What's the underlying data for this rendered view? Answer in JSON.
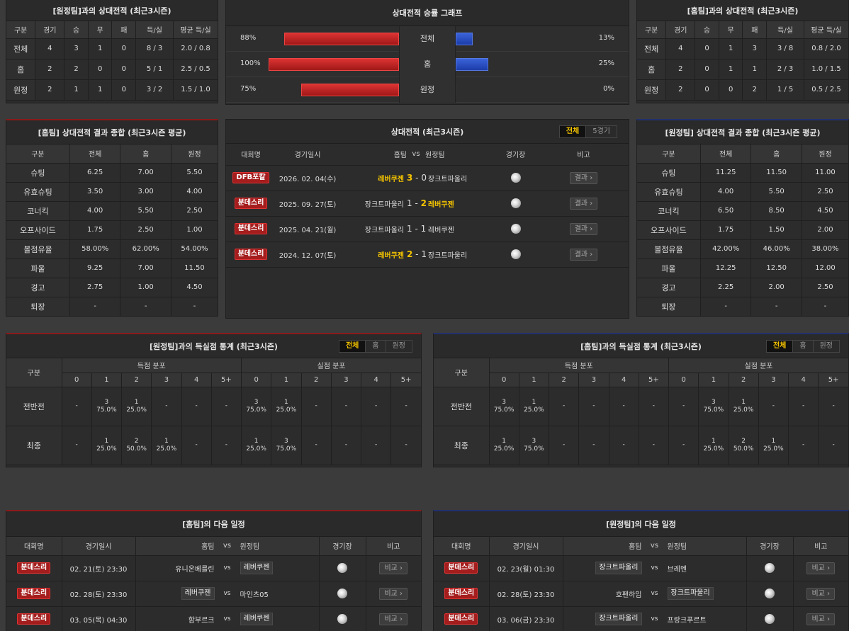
{
  "h2h_away": {
    "title": "[원정팀]과의 상대전적 (최근3시즌)",
    "headers": [
      "구분",
      "경기",
      "승",
      "무",
      "패",
      "득/실",
      "평균 득/실"
    ],
    "rows": [
      [
        "전체",
        "4",
        "3",
        "1",
        "0",
        "8 / 3",
        "2.0 / 0.8"
      ],
      [
        "홈",
        "2",
        "2",
        "0",
        "0",
        "5 / 1",
        "2.5 / 0.5"
      ],
      [
        "원정",
        "2",
        "1",
        "1",
        "0",
        "3 / 2",
        "1.5 / 1.0"
      ]
    ]
  },
  "graph": {
    "title": "상대전적 승률 그래프",
    "rows": [
      {
        "label": "전체",
        "home_pct": "88%",
        "away_pct": "13%",
        "home": 88,
        "away": 13
      },
      {
        "label": "홈",
        "home_pct": "100%",
        "away_pct": "25%",
        "home": 100,
        "away": 25
      },
      {
        "label": "원정",
        "home_pct": "75%",
        "away_pct": "0%",
        "home": 75,
        "away": 0
      }
    ]
  },
  "h2h_home": {
    "title": "[홈팀]과의 상대전적 (최근3시즌)",
    "headers": [
      "구분",
      "경기",
      "승",
      "무",
      "패",
      "득/실",
      "평균 득/실"
    ],
    "rows": [
      [
        "전체",
        "4",
        "0",
        "1",
        "3",
        "3 / 8",
        "0.8 / 2.0"
      ],
      [
        "홈",
        "2",
        "0",
        "1",
        "1",
        "2 / 3",
        "1.0 / 1.5"
      ],
      [
        "원정",
        "2",
        "0",
        "0",
        "2",
        "1 / 5",
        "0.5 / 2.5"
      ]
    ]
  },
  "stats_home": {
    "title": "[홈팀] 상대전적 결과 종합 (최근3시즌 평균)",
    "headers": [
      "구분",
      "전체",
      "홈",
      "원정"
    ],
    "rows": [
      [
        "슈팅",
        "6.25",
        "7.00",
        "5.50"
      ],
      [
        "유효슈팅",
        "3.50",
        "3.00",
        "4.00"
      ],
      [
        "코너킥",
        "4.00",
        "5.50",
        "2.50"
      ],
      [
        "오프사이드",
        "1.75",
        "2.50",
        "1.00"
      ],
      [
        "볼점유율",
        "58.00%",
        "62.00%",
        "54.00%"
      ],
      [
        "파울",
        "9.25",
        "7.00",
        "11.50"
      ],
      [
        "경고",
        "2.75",
        "1.00",
        "4.50"
      ],
      [
        "퇴장",
        "-",
        "-",
        "-"
      ]
    ]
  },
  "matches": {
    "title": "상대전적 (최근3시즌)",
    "tabs": [
      "전체",
      "5경기"
    ],
    "headers": [
      "대회명",
      "경기일시",
      "홈팀",
      "vs",
      "원정팀",
      "경기장",
      "비고"
    ],
    "result_label": "결과",
    "rows": [
      {
        "comp": "DFB포칼",
        "date": "2026. 02. 04(수)",
        "home": "레버쿠젠",
        "hs": "3",
        "as": "0",
        "away": "장크트파울리",
        "win": "home"
      },
      {
        "comp": "분데스리",
        "date": "2025. 09. 27(토)",
        "home": "장크트파울리",
        "hs": "1",
        "as": "2",
        "away": "레버쿠젠",
        "win": "away"
      },
      {
        "comp": "분데스리",
        "date": "2025. 04. 21(월)",
        "home": "장크트파울리",
        "hs": "1",
        "as": "1",
        "away": "레버쿠젠",
        "win": "none"
      },
      {
        "comp": "분데스리",
        "date": "2024. 12. 07(토)",
        "home": "레버쿠젠",
        "hs": "2",
        "as": "1",
        "away": "장크트파울리",
        "win": "home"
      }
    ]
  },
  "stats_away": {
    "title": "[원정팀] 상대전적 결과 종합 (최근3시즌 평균)",
    "headers": [
      "구분",
      "전체",
      "홈",
      "원정"
    ],
    "rows": [
      [
        "슈팅",
        "11.25",
        "11.50",
        "11.00"
      ],
      [
        "유효슈팅",
        "4.00",
        "5.50",
        "2.50"
      ],
      [
        "코너킥",
        "6.50",
        "8.50",
        "4.50"
      ],
      [
        "오프사이드",
        "1.75",
        "1.50",
        "2.00"
      ],
      [
        "볼점유율",
        "42.00%",
        "46.00%",
        "38.00%"
      ],
      [
        "파울",
        "12.25",
        "12.50",
        "12.00"
      ],
      [
        "경고",
        "2.25",
        "2.00",
        "2.50"
      ],
      [
        "퇴장",
        "-",
        "-",
        "-"
      ]
    ]
  },
  "goals_left": {
    "title": "[원정팀]과의 득실점 통계 (최근3시즌)",
    "tabs": [
      "전체",
      "홈",
      "원정"
    ],
    "col_label": "구분",
    "scored": "득점 분포",
    "conceded": "실점 분포",
    "cols": [
      "0",
      "1",
      "2",
      "3",
      "4",
      "5+"
    ],
    "rows": [
      {
        "label": "전반전",
        "cells": [
          [
            "-"
          ],
          [
            "3",
            "75.0%"
          ],
          [
            "1",
            "25.0%"
          ],
          [
            "-"
          ],
          [
            "-"
          ],
          [
            "-"
          ],
          [
            "3",
            "75.0%"
          ],
          [
            "1",
            "25.0%"
          ],
          [
            "-"
          ],
          [
            "-"
          ],
          [
            "-"
          ],
          [
            "-"
          ]
        ]
      },
      {
        "label": "최종",
        "cells": [
          [
            "-"
          ],
          [
            "1",
            "25.0%"
          ],
          [
            "2",
            "50.0%"
          ],
          [
            "1",
            "25.0%"
          ],
          [
            "-"
          ],
          [
            "-"
          ],
          [
            "1",
            "25.0%"
          ],
          [
            "3",
            "75.0%"
          ],
          [
            "-"
          ],
          [
            "-"
          ],
          [
            "-"
          ],
          [
            "-"
          ]
        ]
      }
    ]
  },
  "goals_right": {
    "title": "[홈팀]과의 득실점 통계 (최근3시즌)",
    "tabs": [
      "전체",
      "홈",
      "원정"
    ],
    "col_label": "구분",
    "scored": "득점 분포",
    "conceded": "실점 분포",
    "cols": [
      "0",
      "1",
      "2",
      "3",
      "4",
      "5+"
    ],
    "rows": [
      {
        "label": "전반전",
        "cells": [
          [
            "3",
            "75.0%"
          ],
          [
            "1",
            "25.0%"
          ],
          [
            "-"
          ],
          [
            "-"
          ],
          [
            "-"
          ],
          [
            "-"
          ],
          [
            "-"
          ],
          [
            "3",
            "75.0%"
          ],
          [
            "1",
            "25.0%"
          ],
          [
            "-"
          ],
          [
            "-"
          ],
          [
            "-"
          ]
        ]
      },
      {
        "label": "최종",
        "cells": [
          [
            "1",
            "25.0%"
          ],
          [
            "3",
            "75.0%"
          ],
          [
            "-"
          ],
          [
            "-"
          ],
          [
            "-"
          ],
          [
            "-"
          ],
          [
            "-"
          ],
          [
            "1",
            "25.0%"
          ],
          [
            "2",
            "50.0%"
          ],
          [
            "1",
            "25.0%"
          ],
          [
            "-"
          ],
          [
            "-"
          ]
        ]
      }
    ]
  },
  "next_home": {
    "title": "[홈팀]의 다음 일정",
    "headers": [
      "대회명",
      "경기일시",
      "홈팀",
      "vs",
      "원정팀",
      "경기장",
      "비고"
    ],
    "vs": "vs",
    "btn": "비교",
    "rows": [
      {
        "comp": "분데스리",
        "date": "02. 21(토) 23:30",
        "home": "유니온베를린",
        "away": "레버쿠젠",
        "boxed": "away"
      },
      {
        "comp": "분데스리",
        "date": "02. 28(토) 23:30",
        "home": "레버쿠젠",
        "away": "마인츠05",
        "boxed": "home"
      },
      {
        "comp": "분데스리",
        "date": "03. 05(목) 04:30",
        "home": "함부르크",
        "away": "레버쿠젠",
        "boxed": "away"
      }
    ]
  },
  "next_away": {
    "title": "[원정팀]의 다음 일정",
    "headers": [
      "대회명",
      "경기일시",
      "홈팀",
      "vs",
      "원정팀",
      "경기장",
      "비고"
    ],
    "vs": "vs",
    "btn": "비교",
    "rows": [
      {
        "comp": "분데스리",
        "date": "02. 23(월) 01:30",
        "home": "장크트파울리",
        "away": "브레멘",
        "boxed": "home"
      },
      {
        "comp": "분데스리",
        "date": "02. 28(토) 23:30",
        "home": "호펜하임",
        "away": "장크트파울리",
        "boxed": "away"
      },
      {
        "comp": "분데스리",
        "date": "03. 06(금) 23:30",
        "home": "장크트파울리",
        "away": "프랑크푸르트",
        "boxed": "home"
      }
    ]
  }
}
